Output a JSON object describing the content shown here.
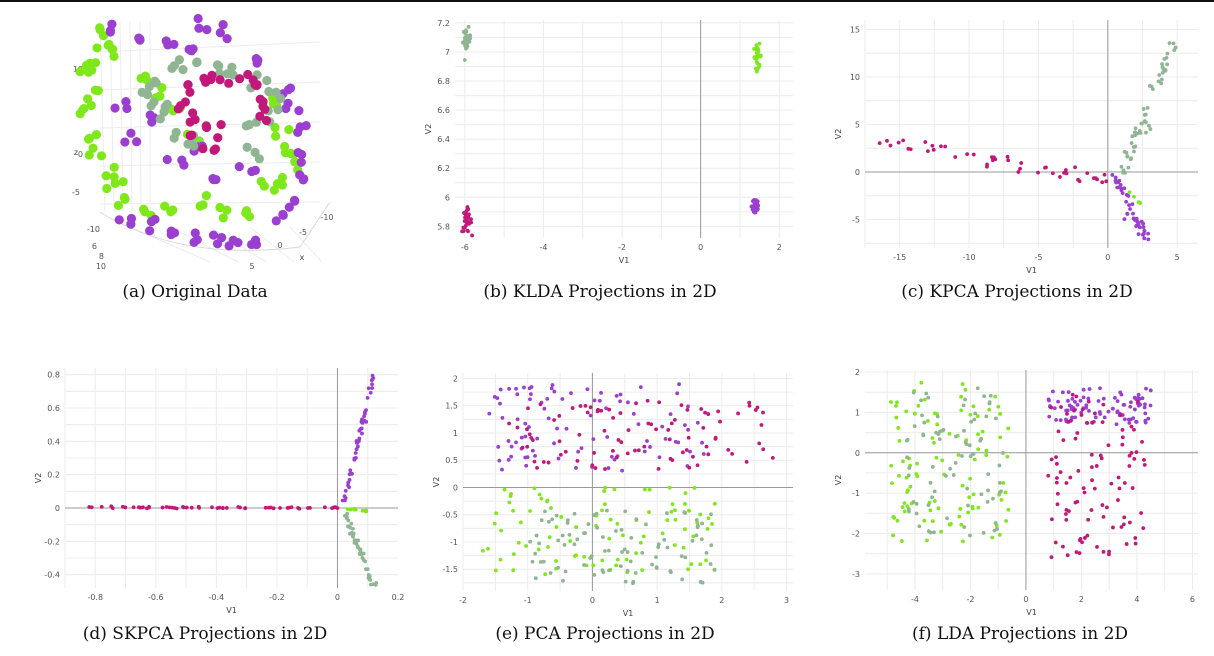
{
  "captions": {
    "a": "(a) Original Data",
    "b": "(b) KLDA Projections in 2D",
    "c": "(c) KPCA Projections in 2D",
    "d": "(d) SKPCA Projections in 2D",
    "e": "(e) PCA Projections in 2D",
    "f": "(f) LDA Projections in 2D"
  },
  "colors": {
    "lime": "#7fe81a",
    "purple": "#9b3fd0",
    "magenta": "#c2187a",
    "sage": "#8fb592",
    "grid": "#ececec",
    "zero_line": "#999999"
  },
  "chart_data": [
    {
      "id": "a",
      "type": "scatter",
      "subtype": "3d",
      "xlabel": "x",
      "zlabel": "z",
      "z_ticks": [
        "10",
        "5",
        "0",
        "-5"
      ],
      "y_ticks": [
        "-10",
        "6",
        "8",
        "10"
      ],
      "x_ticks": [
        "5",
        "0",
        "-5",
        "-10"
      ],
      "series": [
        {
          "color": "lime",
          "points": [
            [
              0.93,
              0.85
            ],
            [
              0.95,
              0.8
            ],
            [
              0.99,
              0.78
            ],
            [
              1.08,
              0.66
            ],
            [
              1.13,
              0.6
            ],
            [
              1.2,
              0.52
            ],
            [
              1.27,
              0.43
            ],
            [
              0.9,
              0.73
            ],
            [
              0.88,
              0.68
            ],
            [
              0.9,
              0.6
            ],
            [
              0.88,
              0.52
            ],
            [
              0.9,
              0.42
            ],
            [
              0.92,
              0.34
            ],
            [
              0.95,
              0.26
            ],
            [
              0.98,
              0.2
            ],
            [
              1.02,
              0.14
            ],
            [
              1.1,
              0.12
            ],
            [
              1.2,
              0.1
            ],
            [
              1.29,
              0.14
            ],
            [
              1.38,
              0.1
            ],
            [
              1.45,
              0.08
            ],
            [
              1.56,
              0.55
            ],
            [
              1.59,
              0.44
            ],
            [
              1.62,
              0.36
            ],
            [
              1.64,
              0.3
            ],
            [
              1.6,
              0.22
            ],
            [
              1.53,
              0.2
            ]
          ]
        },
        {
          "color": "purple",
          "points": [
            [
              0.97,
              0.88
            ],
            [
              1.05,
              0.83
            ],
            [
              1.17,
              0.79
            ],
            [
              1.27,
              0.77
            ],
            [
              1.3,
              0.88
            ],
            [
              1.4,
              0.85
            ],
            [
              1.5,
              0.72
            ],
            [
              1.0,
              0.55
            ],
            [
              1.05,
              0.42
            ],
            [
              1.12,
              0.5
            ],
            [
              1.2,
              0.3
            ],
            [
              1.3,
              0.38
            ],
            [
              1.33,
              0.24
            ],
            [
              1.48,
              0.27
            ],
            [
              1.02,
              0.06
            ],
            [
              1.1,
              0.04
            ],
            [
              1.18,
              0.02
            ],
            [
              1.27,
              0.0
            ],
            [
              1.35,
              -0.02
            ],
            [
              1.42,
              -0.04
            ],
            [
              1.5,
              -0.02
            ],
            [
              1.58,
              0.08
            ],
            [
              1.64,
              0.14
            ],
            [
              1.68,
              0.24
            ],
            [
              1.67,
              0.33
            ],
            [
              1.68,
              0.45
            ],
            [
              1.65,
              0.55
            ],
            [
              1.62,
              0.62
            ]
          ]
        },
        {
          "color": "sage",
          "points": [
            [
              1.08,
              0.6
            ],
            [
              1.13,
              0.66
            ],
            [
              1.2,
              0.7
            ],
            [
              1.28,
              0.72
            ],
            [
              1.35,
              0.72
            ],
            [
              1.42,
              0.7
            ],
            [
              1.5,
              0.66
            ],
            [
              1.56,
              0.6
            ],
            [
              1.57,
              0.52
            ],
            [
              1.15,
              0.5
            ],
            [
              1.2,
              0.42
            ],
            [
              1.27,
              0.38
            ],
            [
              1.48,
              0.47
            ],
            [
              1.5,
              0.35
            ],
            [
              1.14,
              0.56
            ]
          ]
        },
        {
          "color": "magenta",
          "points": [
            [
              1.22,
              0.55
            ],
            [
              1.25,
              0.62
            ],
            [
              1.3,
              0.66
            ],
            [
              1.37,
              0.67
            ],
            [
              1.44,
              0.66
            ],
            [
              1.5,
              0.62
            ],
            [
              1.53,
              0.56
            ],
            [
              1.53,
              0.5
            ],
            [
              1.27,
              0.5
            ],
            [
              1.28,
              0.43
            ],
            [
              1.33,
              0.38
            ],
            [
              1.37,
              0.45
            ]
          ]
        }
      ]
    },
    {
      "id": "b",
      "type": "scatter",
      "xlabel": "V1",
      "ylabel": "V2",
      "xlim": [
        -6.25,
        2.35
      ],
      "ylim": [
        5.72,
        7.22
      ],
      "x_ticks": [
        -6,
        -4,
        -2,
        0,
        2
      ],
      "y_ticks": [
        5.8,
        6,
        6.2,
        6.4,
        6.6,
        6.8,
        7,
        7.2
      ],
      "zero_lines": {
        "x": true,
        "y": false
      },
      "clusters": [
        {
          "color": "sage",
          "cx": -5.95,
          "cy": 7.08,
          "sx": 0.05,
          "sy": 0.04,
          "n": 30
        },
        {
          "color": "lime",
          "cx": 1.45,
          "cy": 6.97,
          "sx": 0.05,
          "sy": 0.04,
          "n": 30
        },
        {
          "color": "magenta",
          "cx": -5.95,
          "cy": 5.84,
          "sx": 0.06,
          "sy": 0.04,
          "n": 30
        },
        {
          "color": "purple",
          "cx": 1.4,
          "cy": 5.94,
          "sx": 0.05,
          "sy": 0.04,
          "n": 30
        }
      ]
    },
    {
      "id": "c",
      "type": "scatter",
      "xlabel": "V1",
      "ylabel": "V2",
      "xlim": [
        -17.5,
        6.5
      ],
      "ylim": [
        -8,
        16
      ],
      "x_ticks": [
        -15,
        -10,
        -5,
        0,
        5
      ],
      "y_ticks": [
        -5,
        0,
        5,
        10,
        15
      ],
      "zero_lines": {
        "x": true,
        "y": true
      },
      "paths": [
        {
          "color": "sage",
          "from": [
            1.0,
            -0.2
          ],
          "to": [
            4.7,
            14.0
          ],
          "n": 55,
          "spread": 0.25
        },
        {
          "color": "magenta",
          "from": [
            -16.0,
            3.3
          ],
          "to": [
            1.0,
            -1.3
          ],
          "n": 45,
          "spread": 0.35
        },
        {
          "color": "purple",
          "from": [
            0.5,
            -0.5
          ],
          "to": [
            2.7,
            -6.8
          ],
          "n": 45,
          "spread": 0.2
        },
        {
          "color": "lime",
          "from": [
            1.5,
            -2.0
          ],
          "to": [
            2.5,
            -3.6
          ],
          "n": 4,
          "spread": 0.1
        }
      ]
    },
    {
      "id": "d",
      "type": "scatter",
      "xlabel": "V1",
      "ylabel": "V2",
      "xlim": [
        -0.9,
        0.2
      ],
      "ylim": [
        -0.48,
        0.84
      ],
      "x_ticks": [
        -0.8,
        -0.6,
        -0.4,
        -0.2,
        0,
        0.2
      ],
      "y_ticks": [
        -0.4,
        -0.2,
        0,
        0.2,
        0.4,
        0.6,
        0.8
      ],
      "zero_lines": {
        "x": true,
        "y": true
      },
      "paths": [
        {
          "color": "magenta",
          "from": [
            -0.85,
            0.005
          ],
          "to": [
            0.01,
            0.0
          ],
          "n": 55,
          "spread": 0.003
        },
        {
          "color": "purple",
          "from": [
            0.02,
            0.02
          ],
          "to": [
            0.12,
            0.8
          ],
          "n": 50,
          "spread": 0.004
        },
        {
          "color": "sage",
          "from": [
            0.02,
            -0.02
          ],
          "to": [
            0.12,
            -0.46
          ],
          "n": 50,
          "spread": 0.005
        },
        {
          "color": "lime",
          "from": [
            0.03,
            -0.005
          ],
          "to": [
            0.1,
            -0.02
          ],
          "n": 10,
          "spread": 0.003
        }
      ]
    },
    {
      "id": "e",
      "type": "scatter",
      "xlabel": "V1",
      "ylabel": "V2",
      "xlim": [
        -2.0,
        3.1
      ],
      "ylim": [
        -1.9,
        2.1
      ],
      "x_ticks": [
        -2,
        -1,
        0,
        1,
        2,
        3
      ],
      "y_ticks": [
        -1.5,
        -1,
        -0.5,
        0,
        0.5,
        1,
        1.5,
        2
      ],
      "zero_lines": {
        "x": true,
        "y": true
      },
      "boxes": [
        {
          "color": "purple",
          "x": [
            -1.6,
            1.8
          ],
          "y": [
            0.3,
            1.9
          ],
          "n": 90
        },
        {
          "color": "magenta",
          "x": [
            -1.3,
            2.8
          ],
          "y": [
            0.3,
            1.6
          ],
          "n": 90
        },
        {
          "color": "lime",
          "x": [
            -1.7,
            1.9
          ],
          "y": [
            -1.6,
            0.0
          ],
          "n": 90
        },
        {
          "color": "sage",
          "x": [
            -1.0,
            1.9
          ],
          "y": [
            -1.8,
            -0.4
          ],
          "n": 90
        }
      ]
    },
    {
      "id": "f",
      "type": "scatter",
      "xlabel": "V1",
      "ylabel": "V2",
      "xlim": [
        -5.8,
        6.2
      ],
      "ylim": [
        -3.4,
        2.05
      ],
      "x_ticks": [
        -4,
        -2,
        0,
        2,
        4,
        6
      ],
      "y_ticks": [
        -3,
        -2,
        -1,
        0,
        1,
        2
      ],
      "zero_lines": {
        "x": true,
        "y": true
      },
      "boxes": [
        {
          "color": "lime",
          "x": [
            -4.9,
            -0.6
          ],
          "y": [
            -2.2,
            1.75
          ],
          "n": 100
        },
        {
          "color": "sage",
          "x": [
            -4.3,
            -0.8
          ],
          "y": [
            -2.1,
            1.6
          ],
          "n": 80
        },
        {
          "color": "purple",
          "x": [
            0.8,
            4.5
          ],
          "y": [
            0.7,
            1.6
          ],
          "n": 90
        },
        {
          "color": "magenta",
          "x": [
            0.8,
            4.4
          ],
          "y": [
            -2.6,
            1.5
          ],
          "n": 100
        }
      ]
    }
  ]
}
